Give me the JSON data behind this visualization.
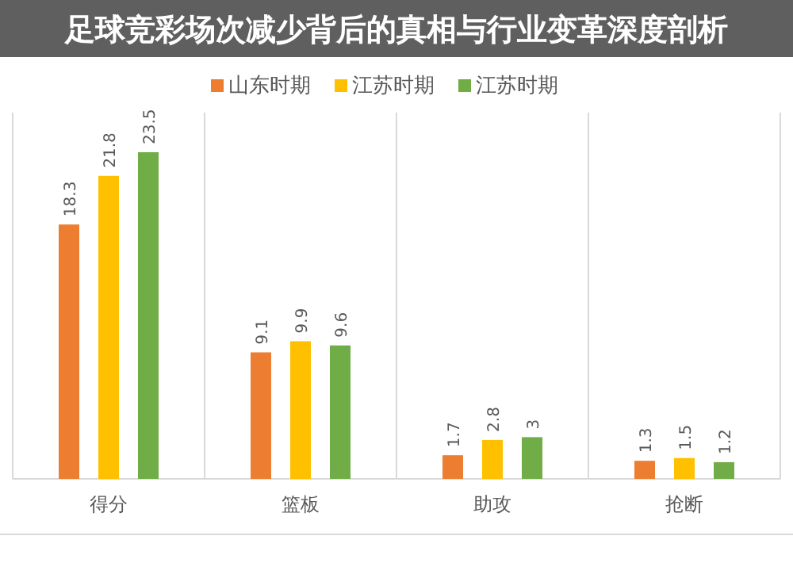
{
  "chart_data": {
    "type": "bar",
    "title": "足球竞彩场次减少背后的真相与行业变革深度剖析",
    "categories": [
      "得分",
      "篮板",
      "助攻",
      "抢断"
    ],
    "series": [
      {
        "name": "山东时期",
        "color": "#ed7d31",
        "values": [
          18.3,
          9.1,
          1.7,
          1.3
        ]
      },
      {
        "name": "江苏时期",
        "color": "#ffc000",
        "values": [
          21.8,
          9.9,
          2.8,
          1.5
        ]
      },
      {
        "name": "江苏时期",
        "color": "#70ad47",
        "values": [
          23.5,
          9.6,
          3,
          1.2
        ]
      }
    ],
    "data_labels": true,
    "grid": "x",
    "legend": "top"
  }
}
